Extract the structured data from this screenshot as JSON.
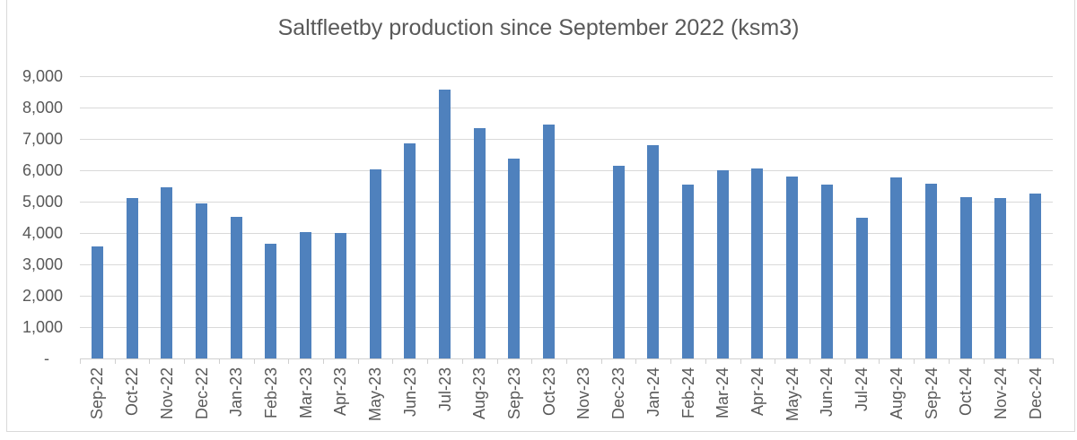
{
  "chart_data": {
    "type": "bar",
    "title": "Saltfleetby production since September 2022 (ksm3)",
    "categories": [
      "Sep-22",
      "Oct-22",
      "Nov-22",
      "Dec-22",
      "Jan-23",
      "Feb-23",
      "Mar-23",
      "Apr-23",
      "May-23",
      "Jun-23",
      "Jul-23",
      "Aug-23",
      "Sep-23",
      "Oct-23",
      "Nov-23",
      "Dec-23",
      "Jan-24",
      "Feb-24",
      "Mar-24",
      "Apr-24",
      "May-24",
      "Jun-24",
      "Jul-24",
      "Aug-24",
      "Sep-24",
      "Oct-24",
      "Nov-24",
      "Dec-24"
    ],
    "values": [
      3580,
      5100,
      5450,
      4940,
      4500,
      3670,
      4040,
      4000,
      6020,
      6860,
      8560,
      7340,
      6360,
      7450,
      0,
      6150,
      6800,
      5550,
      6000,
      6060,
      5810,
      5540,
      4480,
      5760,
      5570,
      5130,
      5120,
      5250
    ],
    "xlabel": "",
    "ylabel": "",
    "ylim": [
      0,
      9000
    ],
    "ytick_step": 1000,
    "ytick_labels": [
      "-",
      "1,000",
      "2,000",
      "3,000",
      "4,000",
      "5,000",
      "6,000",
      "7,000",
      "8,000",
      "9,000"
    ],
    "grid": true,
    "legend": false,
    "bar_color": "#4f81bd",
    "gridline_color": "#d9d9d9",
    "axis_color": "#d0d0d0",
    "text_color": "#595959",
    "background": "#ffffff"
  }
}
